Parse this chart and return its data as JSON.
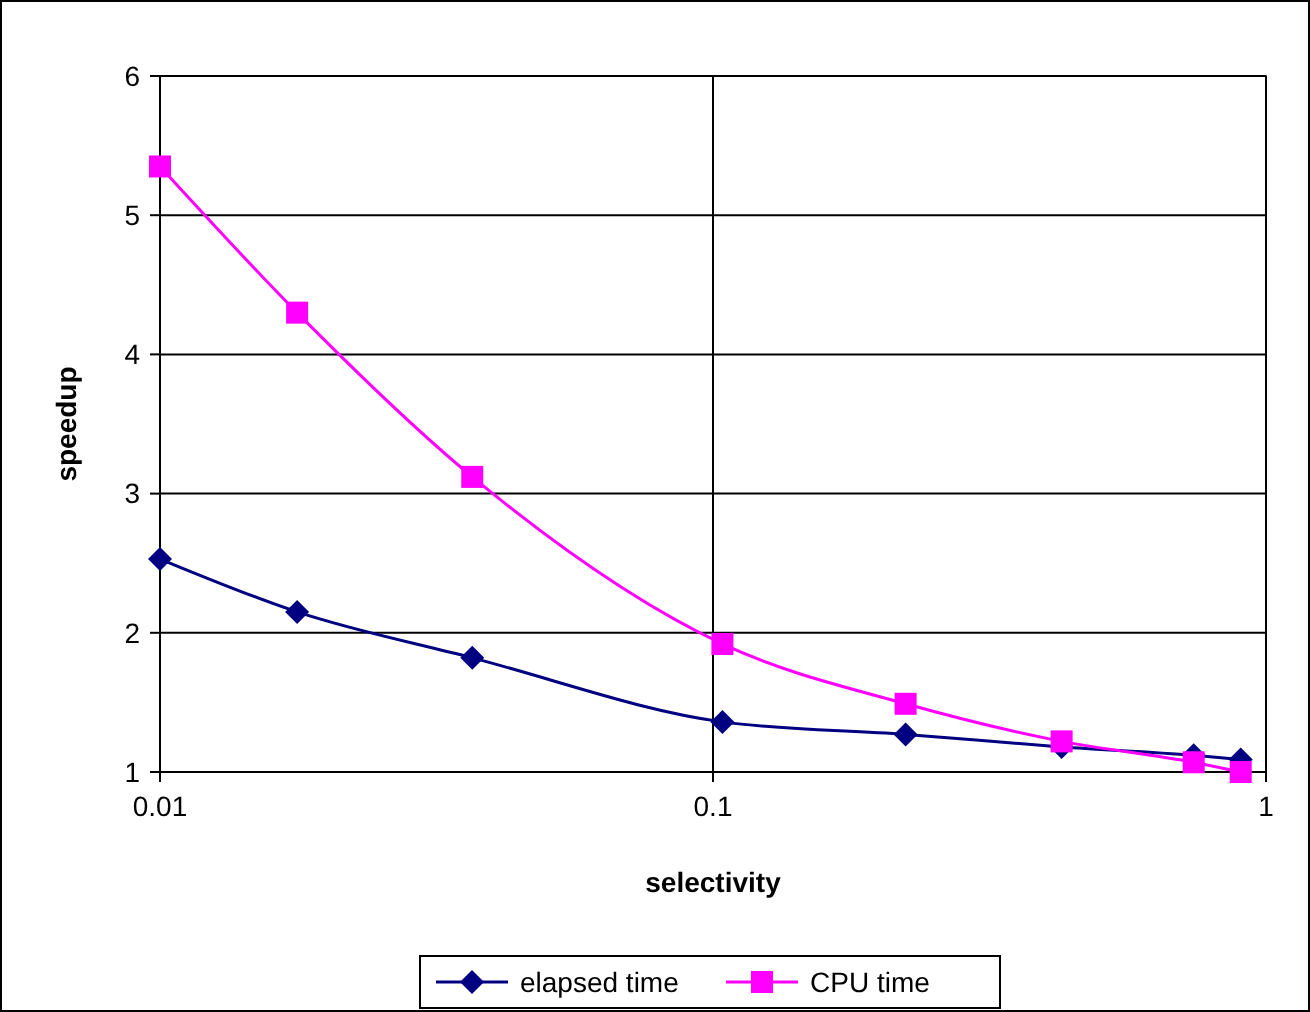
{
  "chart_data": {
    "type": "line",
    "xlabel": "selectivity",
    "ylabel": "speedup",
    "log": "x",
    "grid": true,
    "legend": "bottom",
    "line_style": "solid",
    "x": [
      0.01,
      0.0177,
      0.0367,
      0.104,
      0.223,
      0.427,
      0.74,
      0.9
    ],
    "xlim": [
      0.01,
      1
    ],
    "xticks": [
      0.01,
      0.1,
      1
    ],
    "ylim": [
      1,
      6
    ],
    "yticks": [
      1,
      2,
      3,
      4,
      5,
      6
    ],
    "series": [
      {
        "name": "elapsed time",
        "color": "#000080",
        "marker": "diamond",
        "values": [
          2.53,
          2.15,
          1.82,
          1.36,
          1.27,
          1.18,
          1.12,
          1.09
        ]
      },
      {
        "name": "CPU time",
        "color": "#ff00ff",
        "marker": "square",
        "values": [
          5.35,
          4.3,
          3.12,
          1.92,
          1.49,
          1.22,
          1.07,
          1.0
        ]
      }
    ]
  }
}
